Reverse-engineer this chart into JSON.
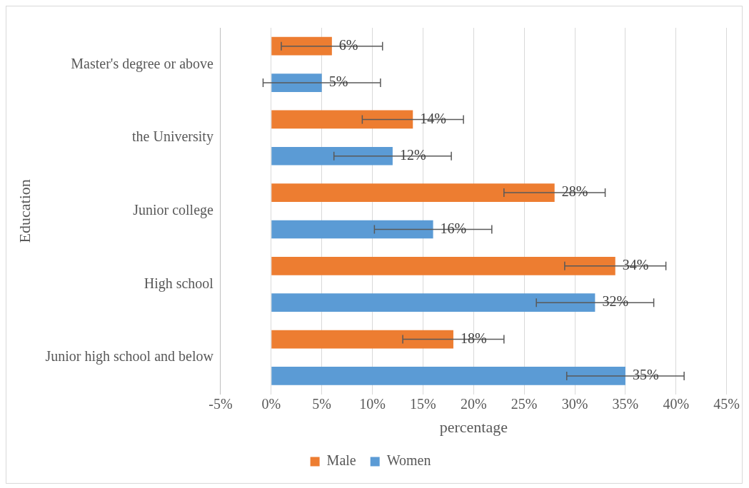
{
  "chart_data": {
    "type": "bar",
    "orientation": "horizontal",
    "xlabel": "percentage",
    "ylabel": "Education",
    "categories": [
      "Master's degree or above",
      "the University",
      "Junior college",
      "High school",
      "Junior high school and below"
    ],
    "series": [
      {
        "name": "Male",
        "color": "#ed7d31",
        "values": [
          6,
          14,
          28,
          34,
          18
        ],
        "errors": [
          5,
          5,
          5,
          5,
          5
        ],
        "value_labels": [
          "6%",
          "14%",
          "28%",
          "34%",
          "18%"
        ]
      },
      {
        "name": "Women",
        "color": "#5b9bd5",
        "values": [
          5,
          12,
          16,
          32,
          35
        ],
        "errors": [
          5.8,
          5.8,
          5.8,
          5.8,
          5.8
        ],
        "value_labels": [
          "5%",
          "12%",
          "16%",
          "32%",
          "35%"
        ]
      }
    ],
    "xlim": [
      -5,
      45
    ],
    "xticks": [
      {
        "value": -5,
        "label": "-5%"
      },
      {
        "value": 0,
        "label": "0%"
      },
      {
        "value": 5,
        "label": "5%"
      },
      {
        "value": 10,
        "label": "10%"
      },
      {
        "value": 15,
        "label": "15%"
      },
      {
        "value": 20,
        "label": "20%"
      },
      {
        "value": 25,
        "label": "25%"
      },
      {
        "value": 30,
        "label": "30%"
      },
      {
        "value": 35,
        "label": "35%"
      },
      {
        "value": 40,
        "label": "40%"
      },
      {
        "value": 45,
        "label": "45%"
      }
    ],
    "grid": "x",
    "legend": "bottom"
  }
}
